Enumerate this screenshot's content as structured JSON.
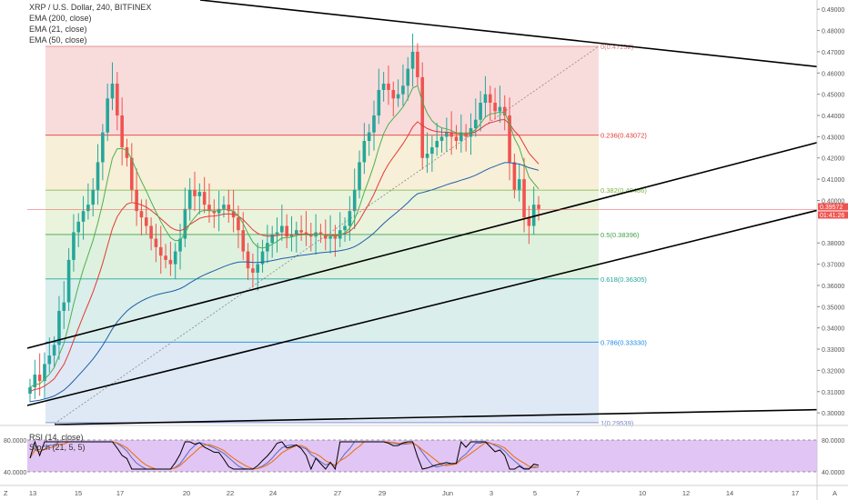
{
  "header": {
    "symbol_line": "XRP / U.S. Dollar, 240, BITFINEX",
    "indicators": [
      "EMA (200, close)",
      "EMA (21, close)",
      "EMA (50, close)"
    ]
  },
  "oscillator": {
    "rsi_label": "RSI (14, close)",
    "stoch_label": "Stoch (21, 5, 5)",
    "ticks": [
      "80.0000",
      "40.0000"
    ]
  },
  "price_axis": {
    "ticks": [
      "0.49000",
      "0.48000",
      "0.47000",
      "0.46000",
      "0.45000",
      "0.44000",
      "0.43000",
      "0.42000",
      "0.41000",
      "0.40000",
      "0.38000",
      "0.37000",
      "0.36000",
      "0.35000",
      "0.34000",
      "0.33000",
      "0.32000",
      "0.31000",
      "0.30000"
    ],
    "last_price": "0.39572",
    "countdown": "01:41:26"
  },
  "time_axis": {
    "labels": [
      "13",
      "15",
      "17",
      "20",
      "22",
      "24",
      "27",
      "29",
      "Jun",
      "3",
      "5",
      "7",
      "10",
      "12",
      "14",
      "17"
    ]
  },
  "corner_labels": {
    "left": "Z",
    "right": "A"
  },
  "colors": {
    "up": "#26a69a",
    "down": "#ef5350",
    "ema200": "#1f5fa8",
    "ema21": "#4caf50",
    "ema50": "#e53935",
    "rsi": "#000000",
    "osc_bg": "#d8b6f2"
  },
  "fib_levels": [
    {
      "ratio": "0",
      "label": "0(0.47252)",
      "color": "#d97a7a"
    },
    {
      "ratio": "0.236",
      "label": "0.236(0.43072)",
      "color": "#e53935"
    },
    {
      "ratio": "0.382",
      "label": "0.382(0.40486)",
      "color": "#7cb342"
    },
    {
      "ratio": "0.5",
      "label": "0.5(0.38396)",
      "color": "#43a047"
    },
    {
      "ratio": "0.618",
      "label": "0.618(0.36305)",
      "color": "#26a69a"
    },
    {
      "ratio": "0.786",
      "label": "0.786(0.33330)",
      "color": "#1e88e5"
    },
    {
      "ratio": "1",
      "label": "1(0.29539)",
      "color": "#7986cb"
    }
  ],
  "chart_data": {
    "type": "candlestick",
    "symbol": "XRP / U.S. Dollar",
    "timeframe": "240",
    "exchange": "BITFINEX",
    "y_range": [
      0.2945,
      0.4935
    ],
    "fib_prices": [
      0.47252,
      0.43072,
      0.40486,
      0.38396,
      0.36305,
      0.3333,
      0.29539
    ],
    "last_price": 0.39572,
    "approx_path": [
      0.312,
      0.318,
      0.315,
      0.323,
      0.327,
      0.332,
      0.348,
      0.352,
      0.372,
      0.385,
      0.39,
      0.395,
      0.398,
      0.405,
      0.418,
      0.432,
      0.448,
      0.455,
      0.44,
      0.425,
      0.42,
      0.405,
      0.395,
      0.392,
      0.388,
      0.382,
      0.378,
      0.374,
      0.372,
      0.37,
      0.376,
      0.382,
      0.396,
      0.405,
      0.402,
      0.404,
      0.398,
      0.395,
      0.394,
      0.396,
      0.398,
      0.395,
      0.392,
      0.386,
      0.376,
      0.368,
      0.366,
      0.37,
      0.376,
      0.38,
      0.384,
      0.385,
      0.388,
      0.383,
      0.384,
      0.386,
      0.385,
      0.384,
      0.383,
      0.385,
      0.384,
      0.382,
      0.383,
      0.382,
      0.386,
      0.388,
      0.395,
      0.405,
      0.418,
      0.428,
      0.432,
      0.44,
      0.452,
      0.455,
      0.452,
      0.448,
      0.45,
      0.454,
      0.462,
      0.47,
      0.458,
      0.42,
      0.422,
      0.425,
      0.428,
      0.43,
      0.432,
      0.43,
      0.428,
      0.432,
      0.43,
      0.434,
      0.438,
      0.446,
      0.45,
      0.446,
      0.442,
      0.444,
      0.44,
      0.418,
      0.405,
      0.41,
      0.392,
      0.388,
      0.398,
      0.396
    ]
  }
}
